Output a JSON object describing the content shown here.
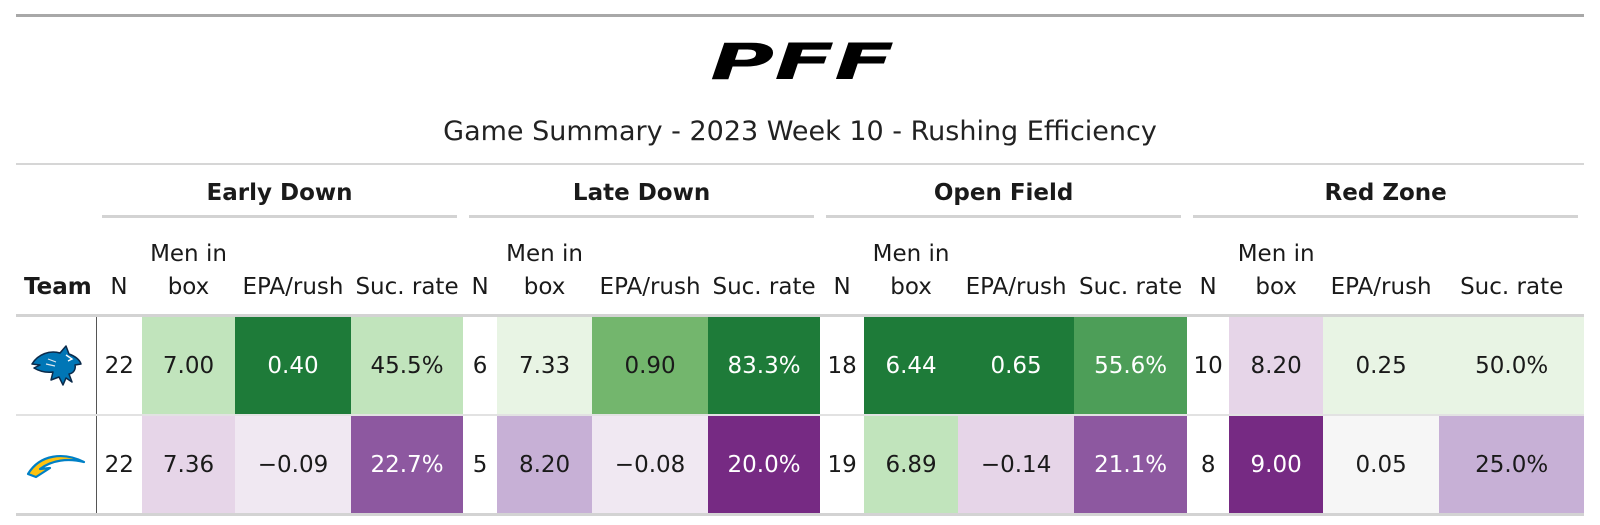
{
  "brand": {
    "logo_text": "PFF"
  },
  "title": "Game Summary - 2023 Week 10 - Rushing Efficiency",
  "table": {
    "team_header": "Team",
    "groups": [
      {
        "label": "Early Down"
      },
      {
        "label": "Late Down"
      },
      {
        "label": "Open Field"
      },
      {
        "label": "Red Zone"
      }
    ],
    "columns": {
      "n": "N",
      "box_line1": "Men in",
      "box_line2": "box",
      "epa": "EPA/rush",
      "suc": "Suc. rate"
    },
    "rows": [
      {
        "team_icon": "lions-logo-icon",
        "cells": [
          {
            "n": "22",
            "box": "7.00",
            "epa": "0.40",
            "suc": "45.5%"
          },
          {
            "n": "6",
            "box": "7.33",
            "epa": "0.90",
            "suc": "83.3%"
          },
          {
            "n": "18",
            "box": "6.44",
            "epa": "0.65",
            "suc": "55.6%"
          },
          {
            "n": "10",
            "box": "8.20",
            "epa": "0.25",
            "suc": "50.0%"
          }
        ]
      },
      {
        "team_icon": "chargers-logo-icon",
        "cells": [
          {
            "n": "22",
            "box": "7.36",
            "epa": "−0.09",
            "suc": "22.7%"
          },
          {
            "n": "5",
            "box": "8.20",
            "epa": "−0.08",
            "suc": "20.0%"
          },
          {
            "n": "19",
            "box": "6.89",
            "epa": "−0.14",
            "suc": "21.1%"
          },
          {
            "n": "8",
            "box": "9.00",
            "epa": "0.05",
            "suc": "25.0%"
          }
        ]
      }
    ]
  },
  "colors": {
    "dark_green": "#1e7b39",
    "mid_green": "#4d9e58",
    "green": "#73b66d",
    "light_green": "#c1e4bc",
    "pale_green": "#e8f4e4",
    "neutral": "#f6f6f6",
    "pale_purple": "#f0e8f2",
    "light_purple": "#e6d5e8",
    "lilac": "#c7b0d6",
    "mid_purple": "#8d58a0",
    "dark_purple": "#762a83"
  }
}
